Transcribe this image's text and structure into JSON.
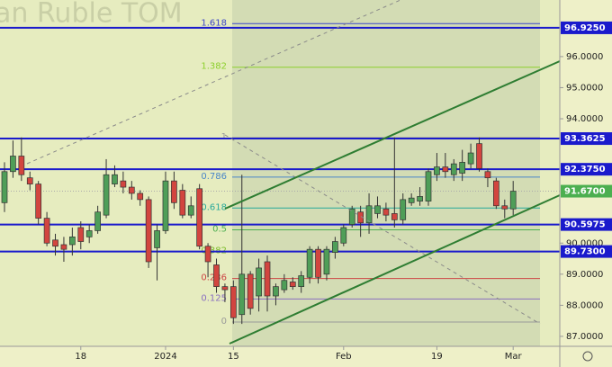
{
  "chart_data": {
    "type": "candlestick",
    "watermark": "an Ruble TOM",
    "categories": [
      null,
      null,
      null,
      null,
      null,
      null,
      null,
      null,
      null,
      "18",
      null,
      null,
      null,
      null,
      null,
      null,
      null,
      null,
      null,
      "2024",
      null,
      null,
      null,
      null,
      null,
      null,
      null,
      "15",
      null,
      null,
      null,
      null,
      null,
      null,
      null,
      null,
      null,
      null,
      null,
      null,
      "Feb",
      null,
      null,
      null,
      null,
      null,
      null,
      null,
      null,
      null,
      null,
      "19",
      null,
      null,
      null,
      null,
      null,
      null,
      null,
      null,
      "Mar"
    ],
    "open": [
      91.3,
      92.3,
      92.8,
      92.1,
      91.9,
      90.8,
      90.1,
      89.95,
      89.95,
      90.5,
      90.2,
      90.4,
      90.9,
      91.9,
      92.0,
      91.8,
      91.6,
      91.4,
      89.85,
      90.4,
      92.0,
      91.7,
      90.9,
      91.75,
      89.9,
      89.3,
      88.6,
      88.6,
      87.7,
      89.0,
      88.3,
      89.4,
      88.3,
      88.5,
      88.75,
      88.6,
      88.9,
      89.8,
      89.0,
      89.7,
      90.0,
      90.6,
      91.0,
      90.65,
      90.95,
      91.1,
      90.95,
      90.75,
      91.3,
      91.35,
      91.35,
      92.2,
      92.45,
      92.2,
      92.25,
      92.55,
      93.2,
      92.3,
      92.0,
      91.2,
      91.1
    ],
    "high": [
      92.6,
      93.3,
      93.4,
      92.3,
      92.0,
      91.0,
      90.3,
      90.2,
      90.5,
      90.7,
      90.6,
      91.2,
      92.7,
      92.5,
      92.3,
      92.0,
      91.7,
      91.5,
      90.6,
      92.3,
      92.3,
      91.9,
      91.5,
      91.9,
      90.0,
      89.5,
      88.7,
      88.8,
      92.2,
      89.1,
      89.5,
      89.6,
      88.7,
      89.0,
      88.9,
      89.1,
      89.9,
      89.9,
      89.9,
      90.2,
      90.6,
      91.2,
      91.2,
      91.6,
      91.5,
      91.3,
      93.4,
      91.6,
      91.6,
      91.8,
      92.4,
      92.9,
      92.9,
      92.7,
      93.0,
      93.2,
      93.4,
      92.4,
      92.1,
      91.4,
      92.0
    ],
    "low": [
      91.0,
      92.1,
      92.0,
      91.7,
      90.6,
      89.9,
      89.6,
      89.4,
      89.6,
      89.8,
      90.0,
      90.3,
      90.8,
      91.8,
      91.6,
      91.4,
      91.2,
      89.2,
      88.8,
      90.3,
      91.1,
      90.8,
      90.8,
      89.8,
      88.9,
      88.4,
      88.1,
      87.4,
      87.4,
      87.7,
      87.8,
      87.8,
      88.0,
      88.4,
      88.5,
      88.4,
      88.7,
      88.7,
      88.8,
      89.5,
      89.9,
      90.5,
      90.2,
      90.3,
      90.8,
      90.7,
      90.5,
      90.6,
      91.2,
      91.2,
      91.2,
      92.0,
      92.1,
      92.0,
      92.0,
      92.4,
      92.3,
      91.8,
      91.1,
      90.8,
      90.9
    ],
    "close": [
      92.3,
      92.8,
      92.2,
      91.9,
      90.8,
      90.0,
      89.9,
      89.8,
      90.2,
      90.05,
      90.4,
      91.0,
      92.2,
      92.2,
      91.8,
      91.6,
      91.4,
      89.4,
      90.4,
      92.0,
      91.3,
      90.9,
      91.2,
      89.9,
      89.4,
      88.6,
      88.5,
      87.6,
      89.0,
      87.9,
      89.2,
      88.3,
      88.6,
      88.8,
      88.6,
      88.95,
      89.8,
      88.9,
      89.8,
      90.05,
      90.5,
      91.1,
      90.65,
      91.2,
      91.2,
      90.9,
      90.75,
      91.4,
      91.45,
      91.5,
      92.3,
      92.45,
      92.3,
      92.55,
      92.6,
      92.9,
      92.4,
      92.1,
      91.2,
      91.1,
      91.67
    ],
    "up_color": "#4f9e58",
    "down_color": "#d2453f",
    "ylim": [
      86.68,
      97.82
    ],
    "yticks": [
      {
        "value": 87,
        "label": "87.0000"
      },
      {
        "value": 88,
        "label": "88.0000"
      },
      {
        "value": 89,
        "label": "89.0000"
      },
      {
        "value": 90,
        "label": "90.0000"
      },
      {
        "value": 94,
        "label": "94.0000"
      },
      {
        "value": 95,
        "label": "95.0000"
      },
      {
        "value": 96,
        "label": "96.0000"
      }
    ],
    "price_markers": [
      {
        "value": 96.925,
        "label": "96.9250",
        "color": "#1a1acc"
      },
      {
        "value": 93.3625,
        "label": "93.3625",
        "color": "#1a1acc"
      },
      {
        "value": 92.375,
        "label": "92.3750",
        "color": "#1a1acc"
      },
      {
        "value": 91.67,
        "label": "91.6700",
        "color": "#4caf50"
      },
      {
        "value": 90.5975,
        "label": "90.5975",
        "color": "#1a1acc"
      },
      {
        "value": 89.73,
        "label": "89.7300",
        "color": "#1a1acc"
      }
    ],
    "fib_levels": [
      0,
      0.125,
      0.236,
      0.382,
      0.5,
      0.618,
      0.786,
      1,
      1.382,
      1.618
    ],
    "fib_colors": [
      "#9a9a9a",
      "#8a6fc0",
      "#cc4444",
      "#7cbd2c",
      "#4caf50",
      "#28a99a",
      "#4a86c8",
      "#9a9a9a",
      "#8ccf2c",
      "#3c46c8"
    ]
  }
}
